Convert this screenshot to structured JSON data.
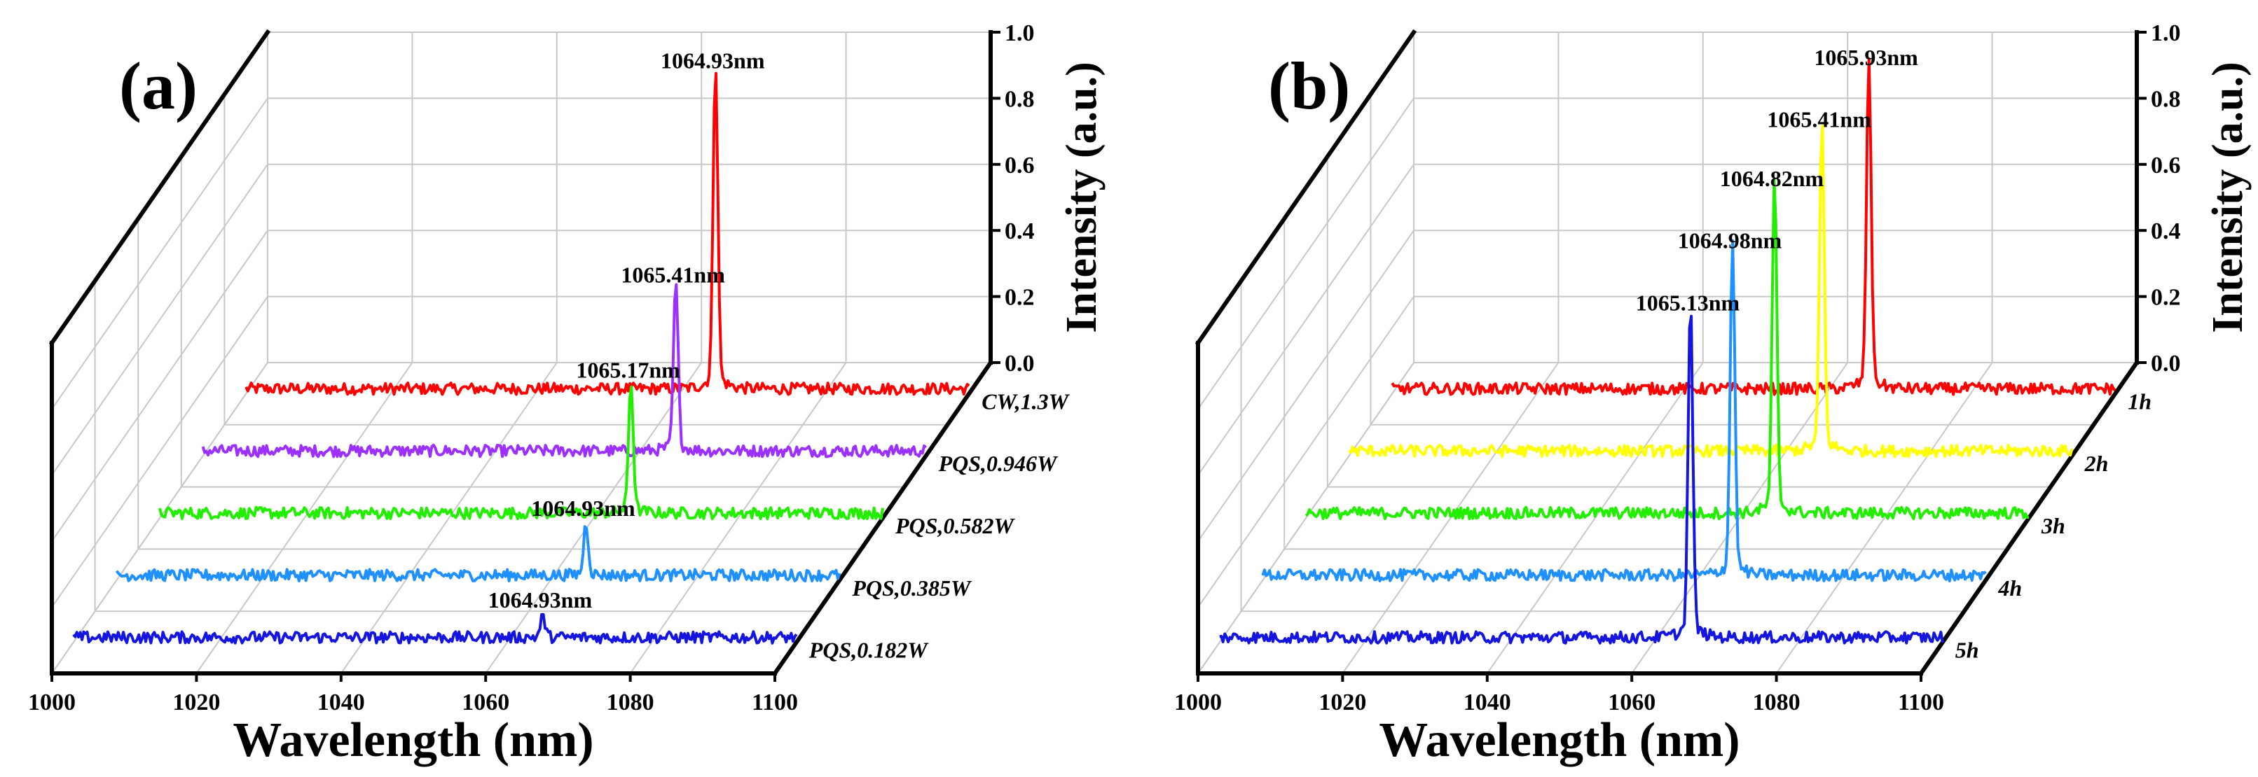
{
  "chart_data": [
    {
      "type": "line",
      "panel_label": "(a)",
      "xlabel": "Wavelength (nm)",
      "ylabel": "Intensity (a.u.)",
      "xlim": [
        1000,
        1100
      ],
      "zlim": [
        0.0,
        1.0
      ],
      "x_ticks": [
        "1000",
        "1020",
        "1040",
        "1060",
        "1080",
        "1100"
      ],
      "z_ticks": [
        "0.0",
        "0.2",
        "0.4",
        "0.6",
        "0.8",
        "1.0"
      ],
      "series": [
        {
          "name": "CW,1.3W",
          "color": "#ff0000",
          "peak_wavelength": 1064.93,
          "peak_intensity": 0.94,
          "peak_label": "1064.93nm"
        },
        {
          "name": "PQS,0.946W",
          "color": "#9b30ff",
          "peak_wavelength": 1065.41,
          "peak_intensity": 0.48,
          "peak_label": "1065.41nm"
        },
        {
          "name": "PQS,0.582W",
          "color": "#22ee00",
          "peak_wavelength": 1065.17,
          "peak_intensity": 0.38,
          "peak_label": "1065.17nm"
        },
        {
          "name": "PQS,0.385W",
          "color": "#1e90ff",
          "peak_wavelength": 1064.93,
          "peak_intensity": 0.15,
          "peak_label": "1064.93nm"
        },
        {
          "name": "PQS,0.182W",
          "color": "#1515e0",
          "peak_wavelength": 1064.93,
          "peak_intensity": 0.06,
          "peak_label": "1064.93nm"
        }
      ]
    },
    {
      "type": "line",
      "panel_label": "(b)",
      "xlabel": "Wavelength (nm)",
      "ylabel": "Intensity (a.u.)",
      "xlim": [
        1000,
        1100
      ],
      "zlim": [
        0.0,
        1.0
      ],
      "x_ticks": [
        "1000",
        "1020",
        "1040",
        "1060",
        "1080",
        "1100"
      ],
      "z_ticks": [
        "0.0",
        "0.2",
        "0.4",
        "0.6",
        "0.8",
        "1.0"
      ],
      "series": [
        {
          "name": "1h",
          "color": "#ff0000",
          "peak_wavelength": 1065.93,
          "peak_intensity": 0.95,
          "peak_label": "1065.93nm"
        },
        {
          "name": "2h",
          "color": "#ffff00",
          "peak_wavelength": 1065.41,
          "peak_intensity": 0.95,
          "peak_label": "1065.41nm"
        },
        {
          "name": "3h",
          "color": "#22ee00",
          "peak_wavelength": 1064.82,
          "peak_intensity": 0.96,
          "peak_label": "1064.82nm"
        },
        {
          "name": "4h",
          "color": "#1e90ff",
          "peak_wavelength": 1064.98,
          "peak_intensity": 0.96,
          "peak_label": "1064.98nm"
        },
        {
          "name": "5h",
          "color": "#1515e0",
          "peak_wavelength": 1065.13,
          "peak_intensity": 0.96,
          "peak_label": "1065.13nm"
        }
      ]
    }
  ]
}
